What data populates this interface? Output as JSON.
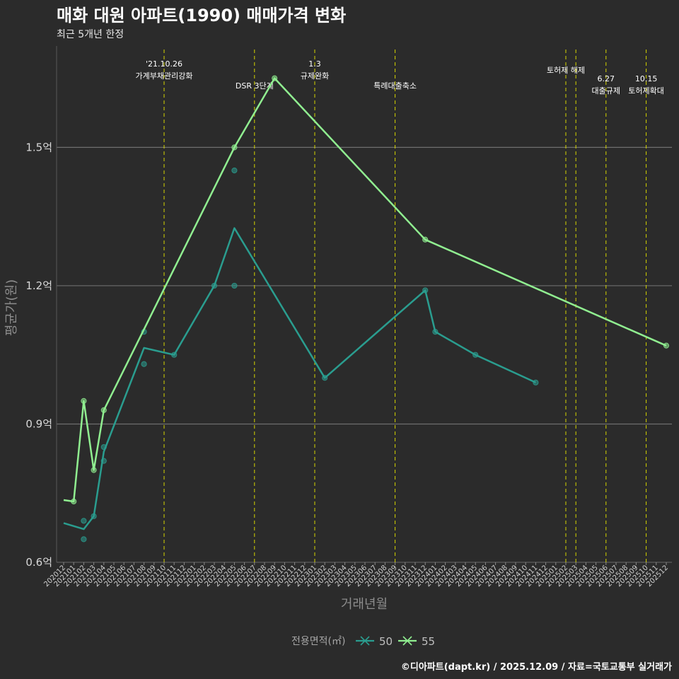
{
  "chart_data": {
    "type": "line",
    "title": "매화 대원 아파트(1990) 매매가격 변화",
    "subtitle": "최근 5개년 한정",
    "xlabel": "거래년월",
    "ylabel": "평균가(원)",
    "ylim": [
      0.6,
      1.72
    ],
    "yticks": [
      0.6,
      0.9,
      1.2,
      1.5
    ],
    "ytick_labels": [
      "0.6억",
      "0.9억",
      "1.2억",
      "1.5억"
    ],
    "x_range": [
      "202012",
      "202512"
    ],
    "categories": [
      "202012",
      "202101",
      "202102",
      "202103",
      "202104",
      "202105",
      "202106",
      "202107",
      "202108",
      "202109",
      "202110",
      "202111",
      "202112",
      "202201",
      "202202",
      "202203",
      "202204",
      "202205",
      "202206",
      "202207",
      "202208",
      "202209",
      "202210",
      "202211",
      "202212",
      "202301",
      "202302",
      "202303",
      "202304",
      "202305",
      "202306",
      "202307",
      "202308",
      "202309",
      "202310",
      "202311",
      "202312",
      "202401",
      "202402",
      "202403",
      "202404",
      "202405",
      "202406",
      "202407",
      "202408",
      "202409",
      "202410",
      "202411",
      "202412",
      "202501",
      "202502",
      "202503",
      "202504",
      "202505",
      "202506",
      "202507",
      "202508",
      "202509",
      "202510",
      "202511",
      "202512"
    ],
    "series": [
      {
        "name": "50",
        "color": "#2a9d8f",
        "line": [
          {
            "x": "202012",
            "y": 0.685
          },
          {
            "x": "202102",
            "y": 0.672
          },
          {
            "x": "202103",
            "y": 0.7
          },
          {
            "x": "202104",
            "y": 0.84
          },
          {
            "x": "202108",
            "y": 1.065
          },
          {
            "x": "202111",
            "y": 1.05
          },
          {
            "x": "202203",
            "y": 1.2
          },
          {
            "x": "202205",
            "y": 1.325
          },
          {
            "x": "202302",
            "y": 1.0
          },
          {
            "x": "202312",
            "y": 1.19
          },
          {
            "x": "202401",
            "y": 1.1
          },
          {
            "x": "202405",
            "y": 1.05
          },
          {
            "x": "202411",
            "y": 0.99
          }
        ],
        "points": [
          {
            "x": "202102",
            "y": 0.69
          },
          {
            "x": "202102",
            "y": 0.65
          },
          {
            "x": "202103",
            "y": 0.7
          },
          {
            "x": "202104",
            "y": 0.85
          },
          {
            "x": "202104",
            "y": 0.82
          },
          {
            "x": "202108",
            "y": 1.1
          },
          {
            "x": "202108",
            "y": 1.03
          },
          {
            "x": "202111",
            "y": 1.05
          },
          {
            "x": "202203",
            "y": 1.2
          },
          {
            "x": "202205",
            "y": 1.45
          },
          {
            "x": "202205",
            "y": 1.2
          },
          {
            "x": "202302",
            "y": 1.0
          },
          {
            "x": "202312",
            "y": 1.19
          },
          {
            "x": "202401",
            "y": 1.1
          },
          {
            "x": "202405",
            "y": 1.05
          },
          {
            "x": "202411",
            "y": 0.99
          }
        ]
      },
      {
        "name": "55",
        "color": "#90ee90",
        "line": [
          {
            "x": "202012",
            "y": 0.735
          },
          {
            "x": "202101",
            "y": 0.732
          },
          {
            "x": "202102",
            "y": 0.95
          },
          {
            "x": "202103",
            "y": 0.8
          },
          {
            "x": "202104",
            "y": 0.93
          },
          {
            "x": "202205",
            "y": 1.5
          },
          {
            "x": "202209",
            "y": 1.65
          },
          {
            "x": "202312",
            "y": 1.3
          },
          {
            "x": "202512",
            "y": 1.07
          }
        ],
        "points": [
          {
            "x": "202101",
            "y": 0.732
          },
          {
            "x": "202102",
            "y": 0.95
          },
          {
            "x": "202103",
            "y": 0.8
          },
          {
            "x": "202104",
            "y": 0.93
          },
          {
            "x": "202205",
            "y": 1.5
          },
          {
            "x": "202209",
            "y": 1.65
          },
          {
            "x": "202312",
            "y": 1.3
          },
          {
            "x": "202512",
            "y": 1.07
          }
        ]
      }
    ],
    "events": [
      {
        "x": 10.0,
        "lines": [
          "'21.10.26",
          "가계부채관리강화"
        ]
      },
      {
        "x": 19.0,
        "lines": [
          "DSR 3단계"
        ]
      },
      {
        "x": 25.0,
        "lines": [
          "1.3",
          "규제완화"
        ]
      },
      {
        "x": 33.0,
        "lines": [
          "특례대출축소"
        ]
      },
      {
        "x": 50.0,
        "lines": [
          "토허제 해제"
        ]
      },
      {
        "x": 51.0,
        "lines": []
      },
      {
        "x": 54.0,
        "lines": [
          "6.27",
          "대출규제"
        ]
      },
      {
        "x": 58.0,
        "lines": [
          "10.15",
          "토허제확대"
        ]
      }
    ],
    "event_line_color": "#d4d400",
    "legend": {
      "title": "전용면적(㎡)",
      "entries": [
        "50",
        "55"
      ],
      "position": "bottom"
    }
  },
  "caption": "©디아파트(dapt.kr) / 2025.12.09 / 자료=국토교통부 실거래가"
}
